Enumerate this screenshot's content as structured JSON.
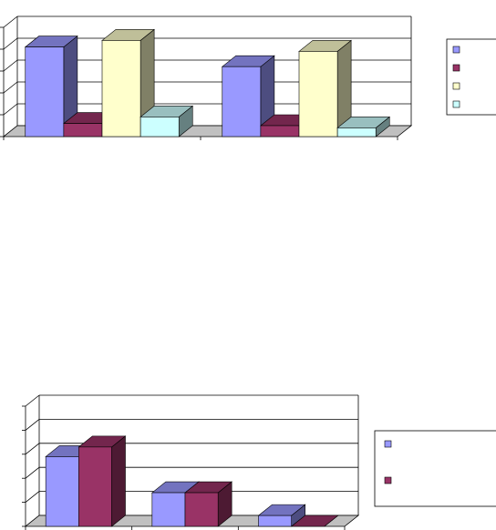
{
  "colors": {
    "series_blue": "#9999FF",
    "series_maroon": "#993366",
    "series_yellow": "#FFFFCC",
    "series_cyan": "#CCFFFF",
    "floor": "#C0C0C0",
    "grid": "#000000"
  },
  "chart_data": [
    {
      "type": "bar",
      "style": "3d-clustered",
      "categories": [
        "",
        ""
      ],
      "series": [
        {
          "color": "#9999FF",
          "values": [
            4.1,
            3.2
          ]
        },
        {
          "color": "#993366",
          "values": [
            0.6,
            0.5
          ]
        },
        {
          "color": "#FFFFCC",
          "values": [
            4.4,
            3.9
          ]
        },
        {
          "color": "#CCFFFF",
          "values": [
            0.9,
            0.4
          ]
        }
      ],
      "ylim": [
        0,
        5
      ],
      "grid": true,
      "legend": {
        "position": "right",
        "entries": [
          "",
          "",
          "",
          ""
        ]
      }
    },
    {
      "type": "bar",
      "style": "3d-clustered",
      "categories": [
        "",
        "",
        ""
      ],
      "series": [
        {
          "color": "#9999FF",
          "values": [
            2.9,
            1.4,
            0.45
          ]
        },
        {
          "color": "#993366",
          "values": [
            3.3,
            1.4,
            0.0
          ]
        }
      ],
      "ylim": [
        0,
        5
      ],
      "grid": true,
      "legend": {
        "position": "right",
        "entries": [
          "",
          ""
        ]
      }
    }
  ]
}
